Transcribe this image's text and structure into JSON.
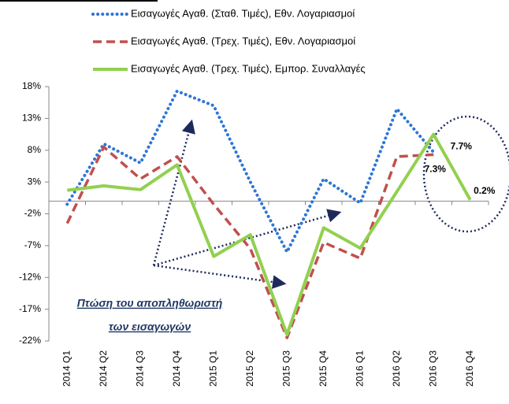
{
  "chart_data": {
    "type": "line",
    "categories": [
      "2014 Q1",
      "2014 Q2",
      "2014 Q3",
      "2014 Q4",
      "2015 Q1",
      "2015 Q2",
      "2015 Q3",
      "2015 Q4",
      "2016 Q1",
      "2016 Q2",
      "2016 Q3",
      "2016 Q4"
    ],
    "series": [
      {
        "name": "Εισαγωγές Αγαθ. (Σταθ. Τιμές), Εθν. Λογαριασμοί",
        "color": "#2e75d6",
        "style": "dotted",
        "values": [
          -0.5,
          9,
          6,
          17.3,
          15,
          3,
          -8,
          3.5,
          -0.3,
          14.5,
          7.7,
          null
        ],
        "value_labels": [
          null,
          null,
          null,
          null,
          null,
          null,
          null,
          null,
          null,
          null,
          "7.7%",
          null
        ]
      },
      {
        "name": "Εισαγωγές Αγαθ. (Τρεχ. Τιμές), Εθν. Λογαριασμοί",
        "color": "#c0504d",
        "style": "dashed",
        "values": [
          -3.5,
          8.5,
          3.5,
          7,
          -0.5,
          -7.5,
          -21.5,
          -6.5,
          -9,
          7,
          7.3,
          null
        ],
        "value_labels": [
          null,
          null,
          null,
          null,
          null,
          null,
          null,
          null,
          null,
          null,
          "7.3%",
          null
        ]
      },
      {
        "name": "Εισαγωγές Αγαθ. (Τρεχ. Τιμές), Εμπορ. Συναλλαγές",
        "color": "#92d050",
        "style": "solid",
        "values": [
          1.7,
          2.4,
          1.8,
          5.7,
          -8.7,
          -5.3,
          -21,
          -4.2,
          -7.4,
          1.5,
          10.5,
          0.2
        ],
        "value_labels": [
          null,
          null,
          null,
          null,
          null,
          null,
          null,
          null,
          null,
          null,
          null,
          "0.2%"
        ]
      }
    ],
    "ylim": [
      -22,
      18
    ],
    "yticks": [
      {
        "value": 18,
        "label": "18%"
      },
      {
        "value": 13,
        "label": "13%"
      },
      {
        "value": 8,
        "label": "8%"
      },
      {
        "value": 3,
        "label": "3%"
      },
      {
        "value": -2,
        "label": "-2%"
      },
      {
        "value": -7,
        "label": "-7%"
      },
      {
        "value": -12,
        "label": "-12%"
      },
      {
        "value": -17,
        "label": "-17%"
      },
      {
        "value": -22,
        "label": "-22%"
      }
    ],
    "annotation": [
      "Πτώση του αποπληθωριστή",
      "των εισαγωγών"
    ]
  }
}
